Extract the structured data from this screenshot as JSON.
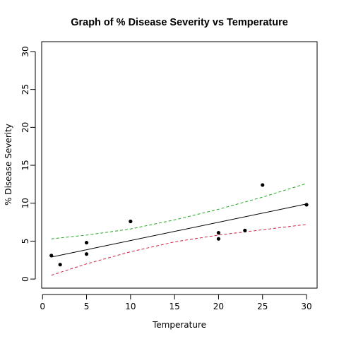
{
  "chart_data": {
    "type": "scatter",
    "title": "Graph of % Disease Severity vs Temperature",
    "xlabel": "Temperature",
    "ylabel": "% Disease Severity",
    "xlim": [
      -0.1,
      31.2
    ],
    "ylim": [
      -1.2,
      31.3
    ],
    "x_ticks": [
      0,
      5,
      10,
      15,
      20,
      25,
      30
    ],
    "y_ticks": [
      0,
      5,
      10,
      15,
      20,
      25,
      30
    ],
    "grid": false,
    "legend": "none",
    "points": {
      "x": [
        1,
        2,
        5,
        5,
        10,
        20,
        20,
        23,
        25,
        30
      ],
      "y": [
        3.1,
        1.9,
        4.8,
        3.3,
        7.6,
        6.1,
        5.3,
        6.4,
        12.4,
        9.8
      ]
    },
    "fit_line": {
      "x": [
        1,
        30
      ],
      "y": [
        2.9,
        9.9
      ],
      "color": "#000000",
      "style": "solid"
    },
    "upper_band": {
      "x": [
        1,
        5,
        10,
        15,
        20,
        25,
        30
      ],
      "y": [
        5.3,
        5.8,
        6.6,
        7.8,
        9.2,
        10.8,
        12.6
      ],
      "color": "#22a822",
      "style": "dashed"
    },
    "lower_band": {
      "x": [
        1,
        5,
        10,
        15,
        20,
        25,
        30
      ],
      "y": [
        0.5,
        2.0,
        3.6,
        4.9,
        5.8,
        6.5,
        7.2
      ],
      "color": "#cc2244",
      "style": "dashed"
    }
  }
}
